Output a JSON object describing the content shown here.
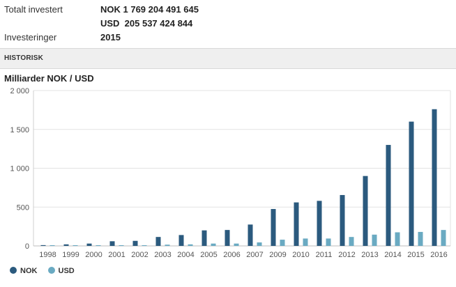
{
  "summary": {
    "total_label": "Totalt investert",
    "total_nok": "NOK 1 769 204 491 645",
    "total_usd": "USD  205 537 424 844",
    "investments_label": "Investeringer",
    "investments_value": "2015"
  },
  "section": {
    "title": "HISTORISK"
  },
  "chart_title": "Milliarder NOK / USD",
  "colors": {
    "nok": "#2b5a7e",
    "usd": "#6aaac2",
    "grid": "#e3e3e3"
  },
  "legend": [
    {
      "label": "NOK",
      "color": "#2b5a7e"
    },
    {
      "label": "USD",
      "color": "#6aaac2"
    }
  ],
  "chart_data": {
    "type": "bar",
    "categories": [
      "1998",
      "1999",
      "2000",
      "2001",
      "2002",
      "2003",
      "2004",
      "2005",
      "2006",
      "2007",
      "2009",
      "2010",
      "2011",
      "2012",
      "2013",
      "2014",
      "2015",
      "2016"
    ],
    "series": [
      {
        "name": "NOK",
        "values": [
          10,
          20,
          30,
          60,
          65,
          115,
          140,
          200,
          205,
          275,
          475,
          560,
          580,
          655,
          900,
          1300,
          1600,
          1760
        ]
      },
      {
        "name": "USD",
        "values": [
          1,
          2,
          3,
          7,
          9,
          16,
          20,
          30,
          30,
          45,
          80,
          95,
          95,
          115,
          145,
          175,
          180,
          205
        ]
      }
    ],
    "ylim": [
      0,
      2000
    ],
    "yticks": [
      {
        "value": 0,
        "label": "0"
      },
      {
        "value": 500,
        "label": "500"
      },
      {
        "value": 1000,
        "label": "1 000"
      },
      {
        "value": 1500,
        "label": "1 500"
      },
      {
        "value": 2000,
        "label": "2 000"
      }
    ],
    "grid": true,
    "legend_position": "bottom-left"
  }
}
